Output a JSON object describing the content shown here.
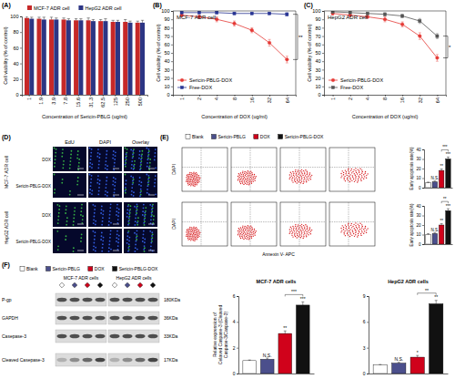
{
  "chart_data": [
    {
      "panel": "(A)",
      "type": "bar",
      "ylabel": "Cell viability (% of control)",
      "xlabel": "Concentration of Sericin-PBLG (ug/ml)",
      "categories": [
        "1",
        "1.9",
        "3.9",
        "7.8",
        "15.6",
        "31.3",
        "62.5",
        "125",
        "250",
        "500"
      ],
      "series": [
        {
          "name": "MCF-7 ADR cell",
          "color": "#c62828",
          "values": [
            98,
            97,
            96,
            96,
            95,
            95,
            94,
            93,
            93,
            92
          ],
          "errors": [
            2,
            2,
            3,
            2,
            2,
            3,
            2,
            2,
            3,
            2
          ]
        },
        {
          "name": "HepG2 ADR cell",
          "color": "#2c3584",
          "values": [
            97,
            96,
            96,
            95,
            95,
            94,
            94,
            93,
            92,
            92
          ],
          "errors": [
            2,
            3,
            2,
            2,
            2,
            2,
            3,
            2,
            2,
            3
          ]
        }
      ],
      "ylim": [
        0,
        100
      ],
      "yticks": [
        0,
        20,
        40,
        60,
        80,
        100
      ],
      "legend": "top"
    },
    {
      "panel": "(B)",
      "type": "line",
      "title": "MCF-7 ADR cell",
      "ylabel": "Cell viability (% of control)",
      "xlabel": "Concentration of DOX (ug/ml)",
      "categories": [
        "1",
        "2",
        "4",
        "8",
        "16",
        "32",
        "64"
      ],
      "series": [
        {
          "name": "Sericin-PBLG-DOX",
          "color": "#e53935",
          "marker": "circle",
          "values": [
            95,
            93,
            90,
            85,
            77,
            62,
            42
          ],
          "errors": [
            2,
            2,
            3,
            3,
            3,
            4,
            4
          ]
        },
        {
          "name": "Free-DOX",
          "color": "#283593",
          "marker": "square",
          "values": [
            98,
            98,
            98,
            97,
            97,
            97,
            96
          ],
          "errors": [
            1,
            1,
            1,
            1,
            1,
            1,
            2
          ]
        }
      ],
      "ylim": [
        0,
        100
      ],
      "yticks": [
        0,
        10,
        20,
        30,
        40,
        50,
        60,
        70,
        80,
        90,
        100
      ],
      "legend": "bottom-left",
      "annotation": "**"
    },
    {
      "panel": "(C)",
      "type": "line",
      "title": "HepG2 ADR cell",
      "ylabel": "Cell viability (% of control)",
      "xlabel": "Concentration of DOX (ug/ml)",
      "categories": [
        "1",
        "2",
        "4",
        "8",
        "16",
        "32",
        "64"
      ],
      "series": [
        {
          "name": "Sericin-PBLG-DOX",
          "color": "#e53935",
          "marker": "circle",
          "values": [
            97,
            95,
            93,
            90,
            84,
            70,
            44
          ],
          "errors": [
            2,
            2,
            2,
            3,
            3,
            4,
            4
          ]
        },
        {
          "name": "Free-DOX",
          "color": "#555555",
          "marker": "square",
          "values": [
            99,
            98,
            97,
            96,
            94,
            88,
            70
          ],
          "errors": [
            1,
            1,
            1,
            2,
            2,
            3,
            3
          ]
        }
      ],
      "ylim": [
        0,
        100
      ],
      "yticks": [
        0,
        10,
        20,
        30,
        40,
        50,
        60,
        70,
        80,
        90,
        100
      ],
      "legend": "bottom-left",
      "annotation": "*"
    },
    {
      "type": "bar",
      "ylabel": "Early apoptosis rate(%)",
      "categories": [
        null,
        null,
        null,
        null
      ],
      "values": [
        5,
        6,
        18,
        30
      ],
      "errors": [
        0.8,
        1,
        1.5,
        2
      ],
      "colors": [
        "#ffffff",
        "#4b4f8c",
        "#d0021b",
        "#111111"
      ],
      "ylim": [
        0,
        40
      ],
      "yticks": [
        0,
        10,
        20,
        30,
        40
      ],
      "annotations": [
        null,
        "N.S.",
        "**",
        "***"
      ],
      "bracket": {
        "from": 2,
        "to": 3,
        "text": "***"
      }
    },
    {
      "type": "bar",
      "ylabel": "Early apoptosis rate(%)",
      "categories": [
        null,
        null,
        null,
        null
      ],
      "values": [
        10,
        11,
        20,
        35
      ],
      "errors": [
        1,
        1,
        1.5,
        2
      ],
      "colors": [
        "#ffffff",
        "#4b4f8c",
        "#d0021b",
        "#111111"
      ],
      "ylim": [
        0,
        40
      ],
      "yticks": [
        0,
        10,
        20,
        30,
        40
      ],
      "annotations": [
        null,
        "N.S.",
        "**",
        "***"
      ],
      "bracket": {
        "from": 2,
        "to": 3,
        "text": "**"
      }
    },
    {
      "type": "bar",
      "title": "MCF-7 ADR cells",
      "ylabel": [
        "Relative expression of",
        "Celaved Caspase-3 (Cleaved",
        "Caspase-3/Caspase-3)"
      ],
      "categories": [
        null,
        null,
        null,
        null
      ],
      "values": [
        1,
        1.1,
        3.1,
        5.3
      ],
      "errors": [
        0.05,
        0.1,
        0.2,
        0.25
      ],
      "colors": [
        "#ffffff",
        "#4b4f8c",
        "#d0021b",
        "#111111"
      ],
      "ylim": [
        0,
        6
      ],
      "yticks": [
        0,
        2,
        4,
        6
      ],
      "annotations": [
        null,
        "N.S.",
        "**",
        "***"
      ],
      "bracket": {
        "from": 2,
        "to": 3,
        "text": "***"
      }
    },
    {
      "type": "bar",
      "title": "HepG2 ADR cells",
      "categories": [
        null,
        null,
        null,
        null
      ],
      "values": [
        1,
        1.2,
        1.9,
        8.1
      ],
      "errors": [
        0.05,
        0.1,
        0.2,
        0.4
      ],
      "colors": [
        "#ffffff",
        "#4b4f8c",
        "#d0021b",
        "#111111"
      ],
      "ylim": [
        0,
        9
      ],
      "yticks": [
        0,
        3,
        6,
        9
      ],
      "annotations": [
        null,
        "N.S.",
        "*",
        "**"
      ],
      "bracket": {
        "from": 2,
        "to": 3,
        "text": "**"
      }
    }
  ],
  "panel_d": {
    "label": "(D)",
    "columns": [
      "EdU",
      "DAPI",
      "Overlay"
    ],
    "groups": [
      {
        "name": "MCF-7 ADR cell",
        "rows": [
          "DOX",
          "Sericin-PBLG-DOX"
        ]
      },
      {
        "name": "HepG2 ADR cell",
        "rows": [
          "DOX",
          "Sericin-PBLG-DOX"
        ]
      }
    ]
  },
  "panel_e": {
    "label": "(E)",
    "entries": [
      {
        "name": "Blank",
        "color": "#ffffff"
      },
      {
        "name": "Sericin-PBLG",
        "color": "#4b4f8c"
      },
      {
        "name": "DOX",
        "color": "#d0021b"
      },
      {
        "name": "Sericin-PBLG-DOX",
        "color": "#111111"
      }
    ],
    "xlabel": "Annexin V- APC",
    "ylabel": "DAPI"
  },
  "panel_f": {
    "label": "(F)",
    "entries": [
      {
        "name": "Blank",
        "color": "#ffffff"
      },
      {
        "name": "Sericin-PBLG",
        "color": "#4b4f8c"
      },
      {
        "name": "DOX",
        "color": "#d0021b"
      },
      {
        "name": "Sericin-PBLG-DOX",
        "color": "#111111"
      }
    ],
    "groups": [
      "MCF-7 ADR cells",
      "HepG2 ADR cells"
    ],
    "bands": [
      {
        "name": "P-gp",
        "size": "180KDa"
      },
      {
        "name": "GAPDH",
        "size": "36KDa"
      },
      {
        "name": "Casepase-3",
        "size": "33KDa"
      },
      {
        "name": "Cleaved Casepase-3",
        "size": "17KDa"
      }
    ]
  }
}
